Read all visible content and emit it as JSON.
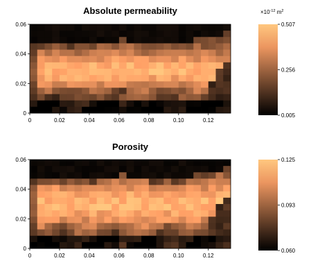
{
  "chart_data": [
    {
      "type": "heatmap",
      "title": "Absolute permeability",
      "xlim": [
        0,
        0.135
      ],
      "ylim": [
        0,
        0.06
      ],
      "x_ticks": [
        "0",
        "0.02",
        "0.04",
        "0.06",
        "0.08",
        "0.10",
        "0.12"
      ],
      "y_ticks": [
        "0",
        "0.02",
        "0.04",
        "0.06"
      ],
      "colorbar": {
        "min": 0.005,
        "max": 0.507,
        "ticks": [
          "0.507",
          "0.256",
          "0.005"
        ],
        "unit_base": "×10",
        "unit_exp": "-12",
        "unit_suffix": " m",
        "unit_sup2": "2"
      },
      "grid_shape": [
        14,
        27
      ],
      "colormap": "copper"
    },
    {
      "type": "heatmap",
      "title": "Porosity",
      "xlim": [
        0,
        0.135
      ],
      "ylim": [
        0,
        0.06
      ],
      "x_ticks": [
        "0",
        "0.02",
        "0.04",
        "0.06",
        "0.08",
        "0.10",
        "0.12"
      ],
      "y_ticks": [
        "0",
        "0.02",
        "0.04",
        "0.06"
      ],
      "colorbar": {
        "min": 0.06,
        "max": 0.125,
        "ticks": [
          "0.125",
          "0.093",
          "0.060"
        ]
      },
      "grid_shape": [
        14,
        27
      ],
      "colormap": "copper"
    }
  ]
}
